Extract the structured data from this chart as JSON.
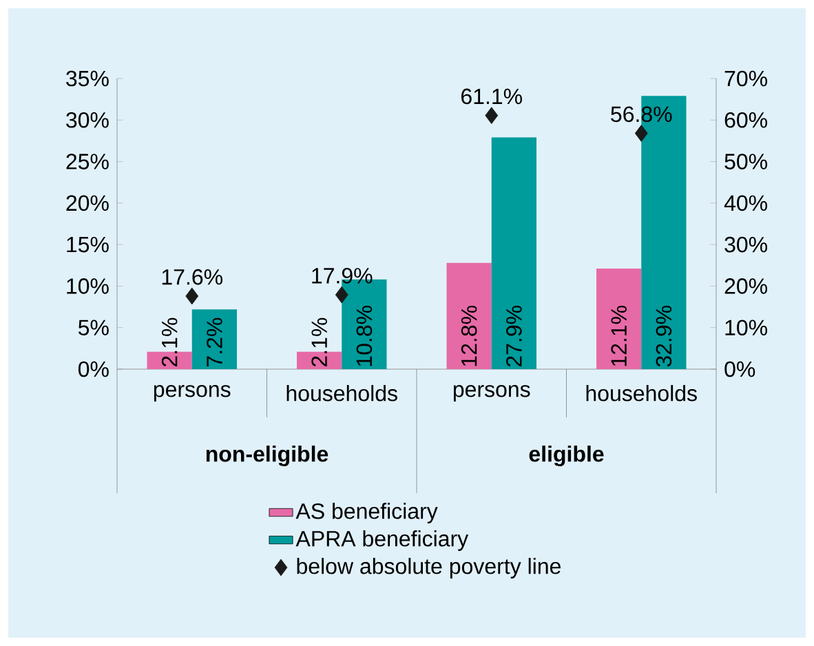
{
  "chart_data": {
    "type": "bar",
    "categories": [
      "persons",
      "households",
      "persons",
      "households"
    ],
    "annotations": [
      "non-eligible",
      "eligible"
    ],
    "series": [
      {
        "name": "AS beneficiary",
        "color": "#e66aa6",
        "values": [
          2.1,
          2.1,
          12.8,
          12.1
        ],
        "value_labels": [
          "2.1%",
          "2.1%",
          "12.8%",
          "12.1%"
        ]
      },
      {
        "name": "APRA beneficiary",
        "color": "#009b9b",
        "values": [
          7.2,
          10.8,
          27.9,
          32.9
        ],
        "value_labels": [
          "7.2%",
          "10.8%",
          "27.9%",
          "32.9%"
        ]
      },
      {
        "name": "below absolute poverty line",
        "type": "scatter",
        "axis": "y2",
        "marker": "diamond",
        "color": "#1a1a1a",
        "values": [
          17.6,
          17.9,
          61.1,
          56.8
        ],
        "value_labels": [
          "17.6%",
          "17.9%",
          "61.1%",
          "56.8%"
        ]
      }
    ],
    "ylim": [
      0,
      35
    ],
    "yticks": [
      {
        "value": 0,
        "label": "0%"
      },
      {
        "value": 5,
        "label": "5%"
      },
      {
        "value": 10,
        "label": "10%"
      },
      {
        "value": 15,
        "label": "15%"
      },
      {
        "value": 20,
        "label": "20%"
      },
      {
        "value": 25,
        "label": "25%"
      },
      {
        "value": 30,
        "label": "30%"
      },
      {
        "value": 35,
        "label": "35%"
      }
    ],
    "y2lim": [
      0,
      70
    ],
    "y2ticks": [
      {
        "value": 0,
        "label": "0%"
      },
      {
        "value": 10,
        "label": "10%"
      },
      {
        "value": 20,
        "label": "20%"
      },
      {
        "value": 30,
        "label": "30%"
      },
      {
        "value": 40,
        "label": "40%"
      },
      {
        "value": 50,
        "label": "50%"
      },
      {
        "value": 60,
        "label": "60%"
      },
      {
        "value": 70,
        "label": "70%"
      }
    ],
    "legend": "bottom",
    "grid": false
  }
}
